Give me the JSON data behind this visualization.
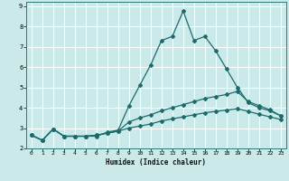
{
  "xlabel": "Humidex (Indice chaleur)",
  "background_color": "#cce9ea",
  "line_color": "#1a6b6b",
  "grid_color": "#ffffff",
  "xlim": [
    -0.5,
    23.5
  ],
  "ylim": [
    2,
    9.2
  ],
  "yticks": [
    2,
    3,
    4,
    5,
    6,
    7,
    8,
    9
  ],
  "xticks": [
    0,
    1,
    2,
    3,
    4,
    5,
    6,
    7,
    8,
    9,
    10,
    11,
    12,
    13,
    14,
    15,
    16,
    17,
    18,
    19,
    20,
    21,
    22,
    23
  ],
  "line1_x": [
    0,
    1,
    2,
    3,
    4,
    5,
    6,
    7,
    8,
    9,
    10,
    11,
    12,
    13,
    14,
    15,
    16,
    17,
    18,
    19,
    20,
    21,
    22,
    23
  ],
  "line1_y": [
    2.65,
    2.4,
    2.95,
    2.6,
    2.6,
    2.6,
    2.6,
    2.8,
    2.9,
    4.1,
    5.1,
    6.1,
    7.3,
    7.5,
    8.75,
    7.3,
    7.5,
    6.8,
    5.9,
    5.0,
    4.25,
    4.0,
    3.85,
    3.6
  ],
  "line2_x": [
    0,
    1,
    2,
    3,
    4,
    5,
    6,
    7,
    8,
    9,
    10,
    11,
    12,
    13,
    14,
    15,
    16,
    17,
    18,
    19,
    20,
    21,
    22,
    23
  ],
  "line2_y": [
    2.65,
    2.4,
    2.95,
    2.6,
    2.6,
    2.6,
    2.65,
    2.75,
    2.85,
    3.3,
    3.5,
    3.65,
    3.85,
    4.0,
    4.15,
    4.3,
    4.45,
    4.55,
    4.65,
    4.8,
    4.3,
    4.1,
    3.9,
    3.6
  ],
  "line3_x": [
    0,
    1,
    2,
    3,
    4,
    5,
    6,
    7,
    8,
    9,
    10,
    11,
    12,
    13,
    14,
    15,
    16,
    17,
    18,
    19,
    20,
    21,
    22,
    23
  ],
  "line3_y": [
    2.65,
    2.4,
    2.95,
    2.6,
    2.6,
    2.6,
    2.65,
    2.75,
    2.85,
    3.0,
    3.1,
    3.2,
    3.35,
    3.45,
    3.55,
    3.65,
    3.75,
    3.82,
    3.88,
    3.95,
    3.82,
    3.68,
    3.55,
    3.42
  ]
}
